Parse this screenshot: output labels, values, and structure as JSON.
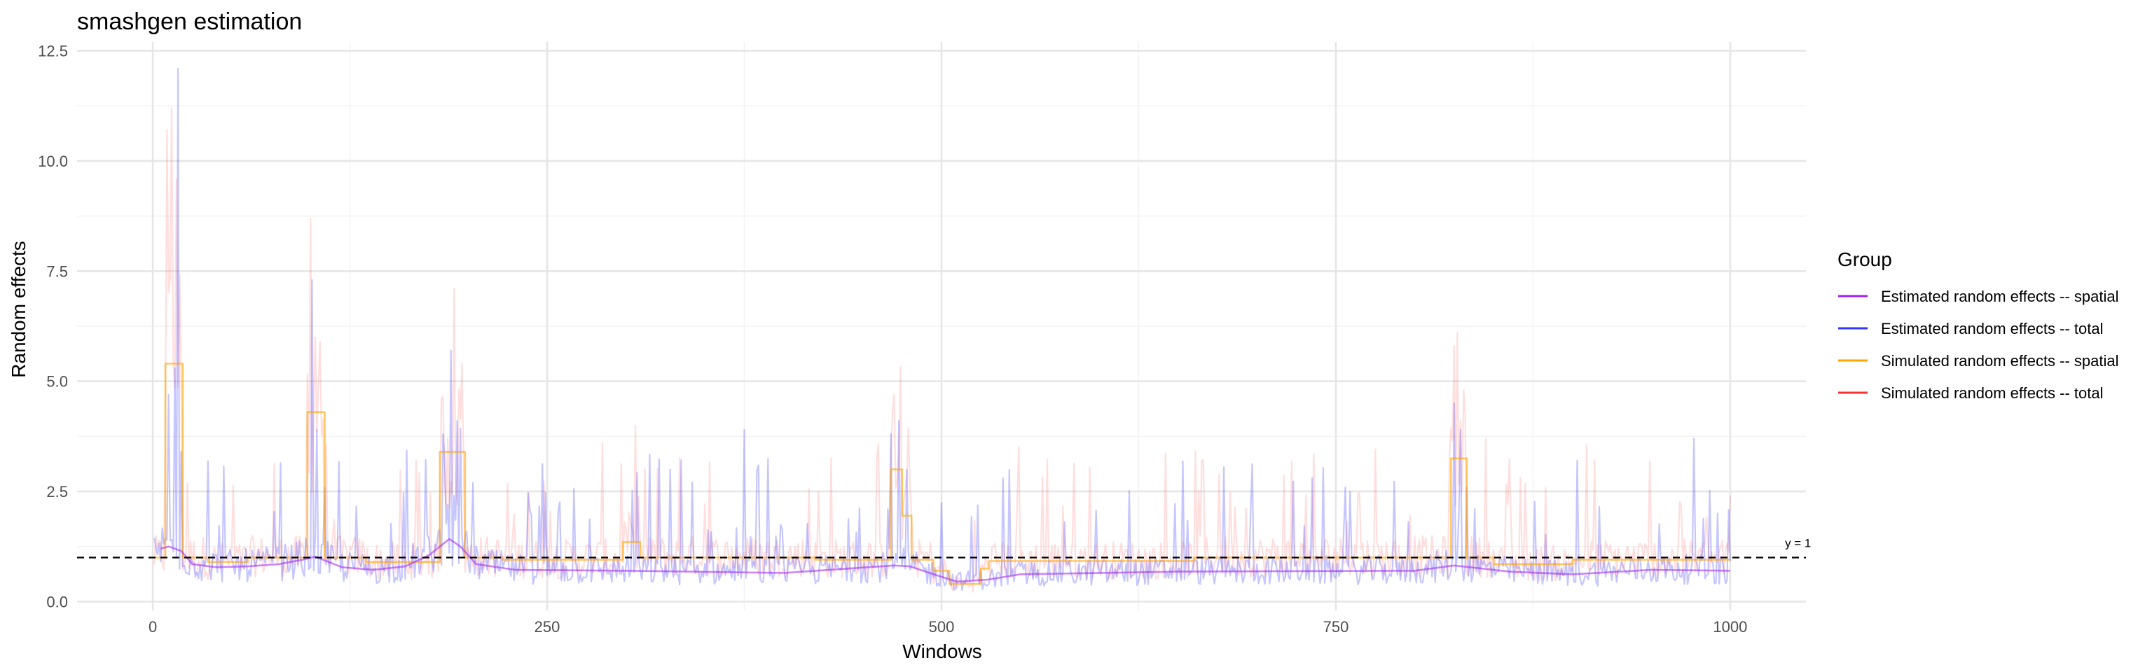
{
  "chart_data": {
    "type": "line",
    "title": "smashgen estimation",
    "xlabel": "Windows",
    "ylabel": "Random effects",
    "xlim": [
      -48,
      1048
    ],
    "ylim": [
      -0.2,
      12.7
    ],
    "x_ticks": [
      0,
      250,
      500,
      750,
      1000
    ],
    "x_tick_labels": [
      "0",
      "250",
      "500",
      "750",
      "1000"
    ],
    "y_ticks": [
      0,
      2.5,
      5,
      7.5,
      10,
      12.5
    ],
    "y_tick_labels": [
      "0.0",
      "2.5",
      "5.0",
      "7.5",
      "10.0",
      "12.5"
    ],
    "grid": true,
    "legend": {
      "title": "Group",
      "position": "right"
    },
    "reference_line": {
      "y": 1,
      "label": "y = 1",
      "style": "dashed",
      "color": "#000000"
    },
    "series": [
      {
        "name": "Estimated random effects -- spatial",
        "color": "#a020f0",
        "opacity": 0.55,
        "style": "smooth",
        "segments": [
          {
            "x": [
              5,
              10,
              18,
              25,
              40,
              60,
              80,
              95,
              103,
              110,
              120,
              140,
              160,
              175,
              188,
              195,
              205,
              230,
              300,
              400,
              470,
              480,
              495,
              510,
              530,
              550,
              650,
              800,
              825,
              835,
              860,
              900,
              950,
              1000
            ],
            "y": [
              1.2,
              1.25,
              1.15,
              0.85,
              0.78,
              0.8,
              0.85,
              0.95,
              1.02,
              0.92,
              0.78,
              0.72,
              0.8,
              1.05,
              1.42,
              1.25,
              0.85,
              0.72,
              0.7,
              0.65,
              0.82,
              0.8,
              0.62,
              0.45,
              0.5,
              0.62,
              0.68,
              0.7,
              0.82,
              0.78,
              0.68,
              0.62,
              0.72,
              0.7
            ]
          }
        ]
      },
      {
        "name": "Estimated random effects -- total",
        "color": "#3333ff",
        "opacity": 0.28,
        "style": "noisy",
        "base_series": "Estimated random effects -- spatial",
        "spikes": [
          {
            "x": 10,
            "y": 4.7
          },
          {
            "x": 14,
            "y": 5.3
          },
          {
            "x": 16,
            "y": 12.1
          },
          {
            "x": 18,
            "y": 3.4
          },
          {
            "x": 101,
            "y": 7.3
          },
          {
            "x": 104,
            "y": 3.9
          },
          {
            "x": 109,
            "y": 2.6
          },
          {
            "x": 184,
            "y": 3.8
          },
          {
            "x": 189,
            "y": 5.7
          },
          {
            "x": 193,
            "y": 4.1
          },
          {
            "x": 328,
            "y": 3.0
          },
          {
            "x": 375,
            "y": 3.9
          },
          {
            "x": 468,
            "y": 3.8
          },
          {
            "x": 473,
            "y": 4.1
          },
          {
            "x": 539,
            "y": 2.8
          },
          {
            "x": 825,
            "y": 4.5
          },
          {
            "x": 829,
            "y": 3.9
          },
          {
            "x": 977,
            "y": 3.7
          }
        ]
      },
      {
        "name": "Simulated random effects -- spatial",
        "color": "#ffa500",
        "opacity": 0.6,
        "style": "step",
        "segments": [
          {
            "x": [
              0,
              8,
              8,
              19,
              19,
              35,
              35,
              60,
              60,
              98,
              98,
              109,
              109,
              135,
              135,
              182,
              182,
              198,
              198,
              222,
              222,
              298,
              298,
              309,
              309,
              420,
              420,
              468,
              468,
              475,
              475,
              481,
              481,
              495,
              495,
              505,
              505,
              525,
              525,
              530,
              530,
              660,
              660,
              823,
              823,
              833,
              833,
              850,
              850,
              900,
              900,
              1000
            ],
            "y": [
              1.0,
              1.0,
              5.4,
              5.4,
              1.0,
              1.0,
              0.9,
              0.9,
              1.0,
              1.0,
              4.3,
              4.3,
              1.0,
              1.0,
              0.9,
              0.9,
              3.4,
              3.4,
              1.0,
              1.0,
              0.95,
              0.95,
              1.35,
              1.35,
              1.0,
              1.0,
              0.95,
              0.95,
              3.0,
              3.0,
              1.95,
              1.95,
              0.95,
              0.95,
              0.7,
              0.7,
              0.4,
              0.4,
              0.75,
              0.75,
              0.92,
              0.92,
              1.0,
              1.0,
              3.25,
              3.25,
              1.0,
              1.0,
              0.85,
              0.85,
              0.95,
              0.95
            ]
          }
        ]
      },
      {
        "name": "Simulated random effects -- total",
        "color": "#ff3030",
        "opacity": 0.16,
        "style": "noisy",
        "base_series": "Simulated random effects -- spatial",
        "spikes": [
          {
            "x": 9,
            "y": 10.7
          },
          {
            "x": 12,
            "y": 11.2
          },
          {
            "x": 15,
            "y": 9.6
          },
          {
            "x": 100,
            "y": 8.7
          },
          {
            "x": 103,
            "y": 6.0
          },
          {
            "x": 106,
            "y": 5.9
          },
          {
            "x": 191,
            "y": 7.1
          },
          {
            "x": 196,
            "y": 5.4
          },
          {
            "x": 285,
            "y": 3.6
          },
          {
            "x": 470,
            "y": 4.7
          },
          {
            "x": 676,
            "y": 2.9
          },
          {
            "x": 827,
            "y": 6.1
          },
          {
            "x": 831,
            "y": 4.8
          },
          {
            "x": 845,
            "y": 3.7
          },
          {
            "x": 1000,
            "y": 2.4
          }
        ]
      }
    ]
  }
}
